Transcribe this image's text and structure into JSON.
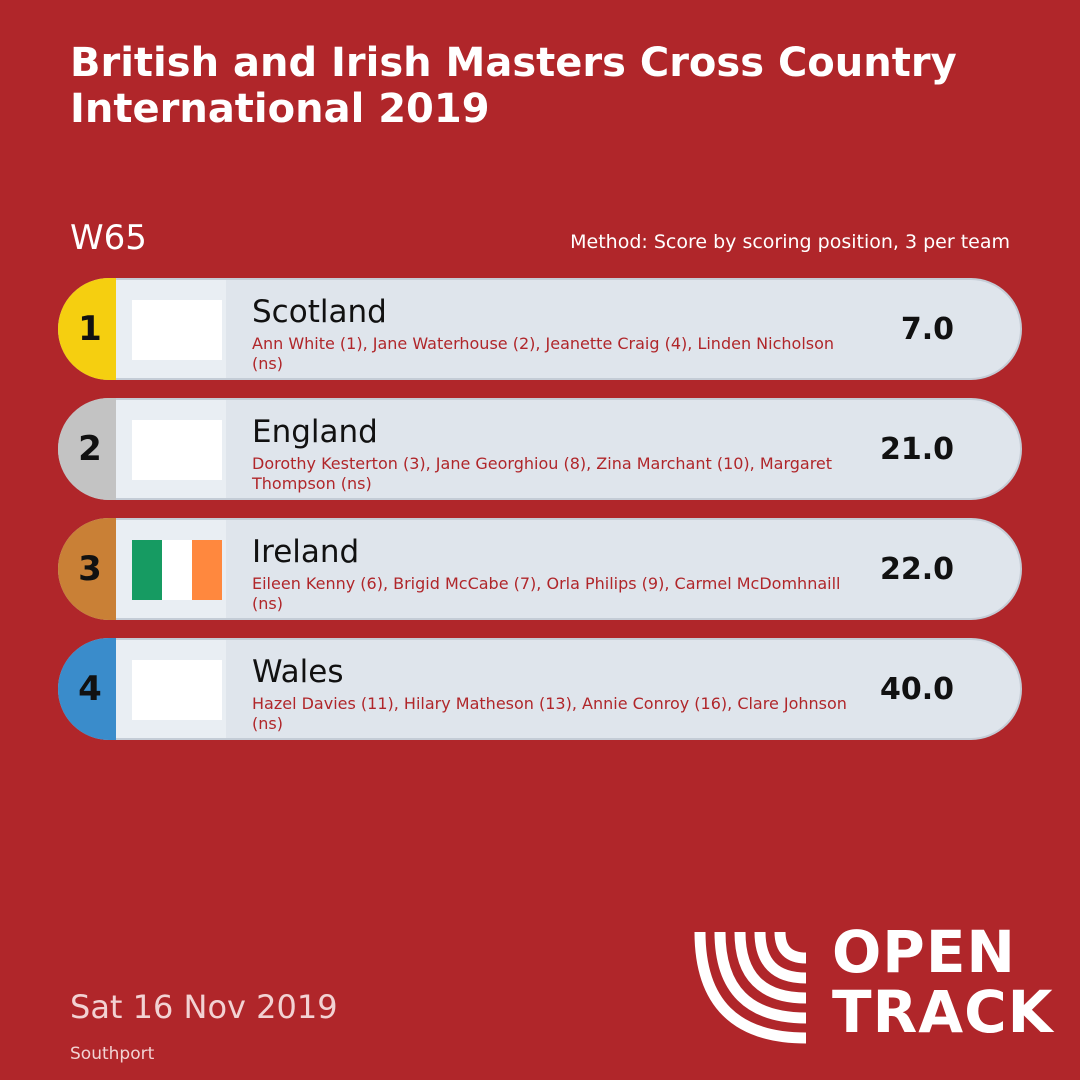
{
  "title": "British and Irish Masters Cross Country International 2019",
  "category": "W65",
  "method": "Method: Score by scoring position, 3 per team",
  "teams": [
    {
      "rank": "1",
      "team": "Scotland",
      "athletes": "Ann White (1), Jane Waterhouse (2), Jeanette Craig (4), Linden Nicholson (ns)",
      "score": "7.0",
      "rank_color": "#f5cf10",
      "flag_colors": [
        "#ffffff"
      ]
    },
    {
      "rank": "2",
      "team": "England",
      "athletes": "Dorothy Kesterton (3), Jane Georghiou (8), Zina Marchant (10), Margaret Thompson (ns)",
      "score": "21.0",
      "rank_color": "#c3c3c3",
      "flag_colors": [
        "#ffffff"
      ]
    },
    {
      "rank": "3",
      "team": "Ireland",
      "athletes": "Eileen Kenny (6), Brigid McCabe (7), Orla Philips (9), Carmel McDomhnaill (ns)",
      "score": "22.0",
      "rank_color": "#c98036",
      "flag_colors": [
        "#169b62",
        "#ffffff",
        "#ff883e"
      ]
    },
    {
      "rank": "4",
      "team": "Wales",
      "athletes": "Hazel Davies (11), Hilary Matheson (13), Annie Conroy (16), Clare Johnson (ns)",
      "score": "40.0",
      "rank_color": "#3a8ccb",
      "flag_colors": [
        "#ffffff"
      ]
    }
  ],
  "date": "Sat 16 Nov 2019",
  "venue": "Southport",
  "logo": {
    "line1": "OPEN",
    "line2": "TRACK"
  },
  "colors": {
    "background": "#b0262a",
    "row": "#dfe5ec",
    "athlete_text": "#b0262a"
  }
}
